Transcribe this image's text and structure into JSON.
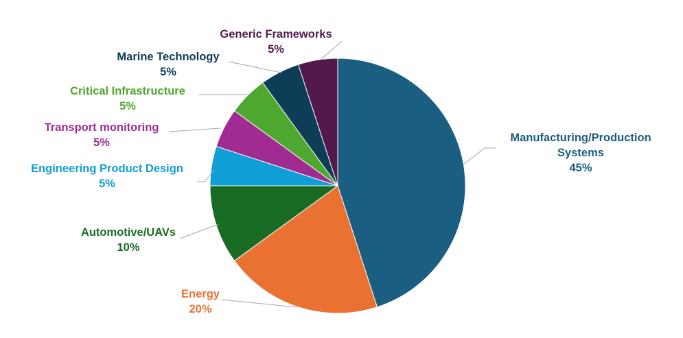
{
  "chart_data": {
    "type": "pie",
    "title": "",
    "slices": [
      {
        "name": "Manufacturing/Production Systems",
        "label_lines": [
          "Manufacturing/Production",
          "Systems"
        ],
        "value": 45,
        "percent_label": "45%",
        "color": "#1a5e82"
      },
      {
        "name": "Energy",
        "label_lines": [
          "Energy"
        ],
        "value": 20,
        "percent_label": "20%",
        "color": "#e97132"
      },
      {
        "name": "Automotive/UAVs",
        "label_lines": [
          "Automotive/UAVs"
        ],
        "value": 10,
        "percent_label": "10%",
        "color": "#196b24"
      },
      {
        "name": "Engineering Product Design",
        "label_lines": [
          "Engineering Product Design"
        ],
        "value": 5,
        "percent_label": "5%",
        "color": "#0f9ed5"
      },
      {
        "name": "Transport monitoring",
        "label_lines": [
          "Transport monitoring"
        ],
        "value": 5,
        "percent_label": "5%",
        "color": "#a02b93"
      },
      {
        "name": "Critical Infrastructure",
        "label_lines": [
          "Critical Infrastructure"
        ],
        "value": 5,
        "percent_label": "5%",
        "color": "#4ea72e"
      },
      {
        "name": "Marine Technology",
        "label_lines": [
          "Marine Technology"
        ],
        "value": 5,
        "percent_label": "5%",
        "color": "#0e3d57"
      },
      {
        "name": "Generic Frameworks",
        "label_lines": [
          "Generic Frameworks"
        ],
        "value": 5,
        "percent_label": "5%",
        "color": "#521a4a"
      }
    ]
  }
}
